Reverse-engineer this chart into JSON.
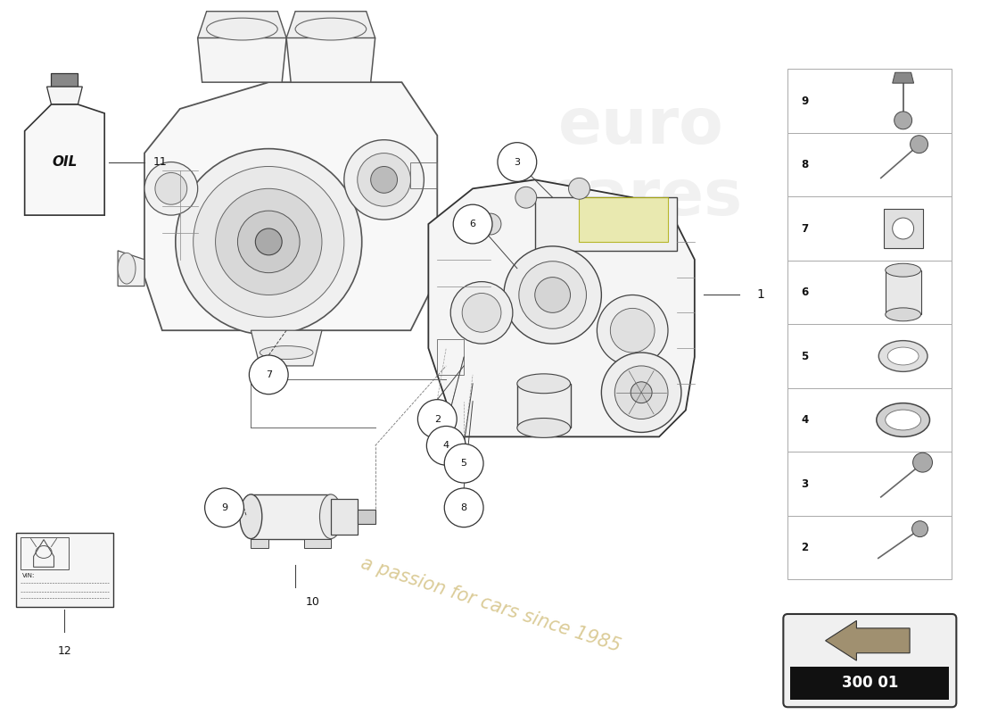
{
  "background_color": "#ffffff",
  "watermark_text": "a passion for cars since 1985",
  "watermark_color": "#c8b060",
  "catalog_number": "300 01",
  "side_panel_numbers": [
    9,
    8,
    7,
    6,
    5,
    4,
    3,
    2
  ],
  "line_color": "#444444",
  "circle_color": "#444444",
  "text_color": "#111111",
  "highlight_yellow": "#e8e8a0",
  "engine_color": "#555555",
  "gearbox_edge": "#333333"
}
